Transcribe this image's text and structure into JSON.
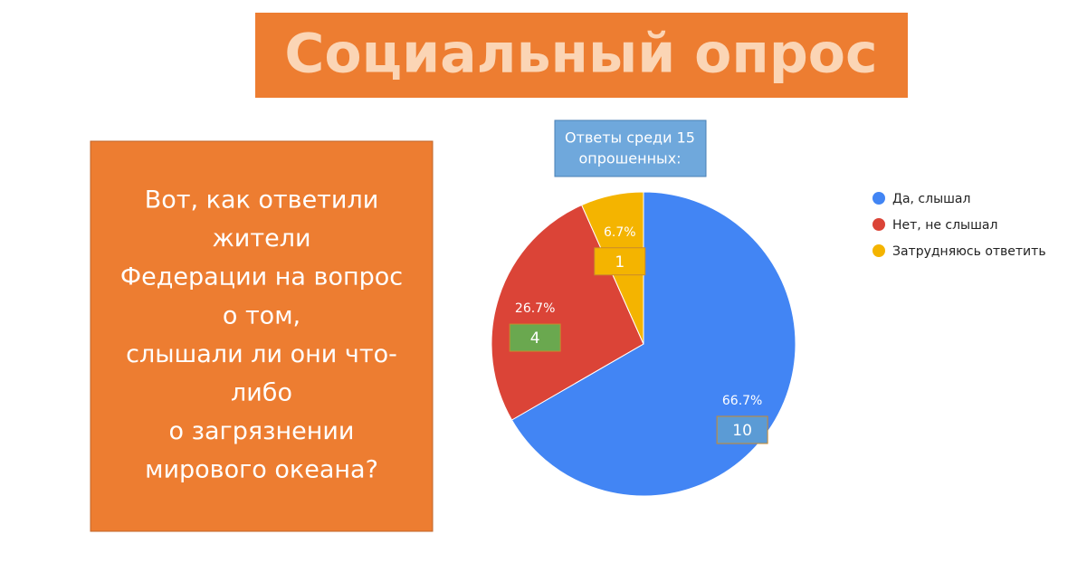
{
  "slide_title": "Социальный опрос",
  "question_lines": [
    "Вот, как ответили",
    "жители",
    "Федерации на вопрос",
    "о том,",
    "слышали ли они что-",
    "либо",
    "о загрязнении",
    "мирового океана?"
  ],
  "chart_data": {
    "type": "pie",
    "title": [
      "Ответы среди 15",
      "опрошенных:"
    ],
    "categories": [
      "Да, слышал",
      "Нет, не слышал",
      "Затрудняюсь ответить"
    ],
    "values": [
      10,
      4,
      1
    ],
    "percent_labels": [
      {
        "value": 66.7,
        "label": "66.7%"
      },
      {
        "value": 26.7,
        "label": "26.7%"
      },
      {
        "value": 6.7,
        "label": "6.7%"
      }
    ],
    "colors": [
      "#4285f4",
      "#db4437",
      "#f4b400"
    ],
    "label_box_colors": [
      "#5b9bd5",
      "#6aa84f",
      "#f4b400"
    ],
    "legend": "right"
  }
}
